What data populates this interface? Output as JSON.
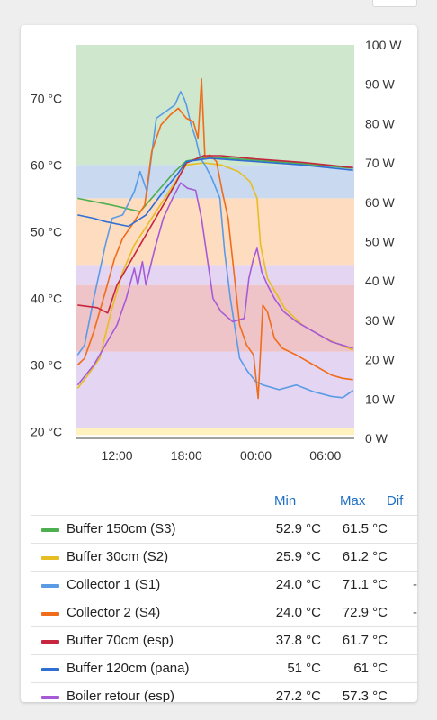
{
  "chart_data": {
    "type": "line",
    "y_left": {
      "unit": "°C",
      "range": [
        19,
        78
      ],
      "ticks": [
        "20 °C",
        "30 °C",
        "40 °C",
        "50 °C",
        "60 °C",
        "70 °C"
      ],
      "tick_values": [
        20,
        30,
        40,
        50,
        60,
        70
      ]
    },
    "y_right": {
      "unit": "W",
      "range": [
        0,
        100
      ],
      "ticks": [
        "0 W",
        "10 W",
        "20 W",
        "30 W",
        "40 W",
        "50 W",
        "60 W",
        "70 W",
        "80 W",
        "90 W",
        "100 W"
      ],
      "tick_values": [
        0,
        10,
        20,
        30,
        40,
        50,
        60,
        70,
        80,
        90,
        100
      ]
    },
    "x": {
      "range_hours": [
        8.5,
        32.5
      ],
      "ticks": [
        "12:00",
        "18:00",
        "00:00",
        "06:00"
      ],
      "tick_values": [
        12,
        18,
        24,
        30
      ]
    },
    "bands": [
      {
        "from_c": 19.5,
        "to_c": 20.5,
        "color": "#fff2bf"
      },
      {
        "from_c": 20.5,
        "to_c": 32,
        "color": "#e4d6f2"
      },
      {
        "from_c": 32,
        "to_c": 42,
        "color": "#eec4c8"
      },
      {
        "from_c": 42,
        "to_c": 45,
        "color": "#e4d6f2"
      },
      {
        "from_c": 45,
        "to_c": 55,
        "color": "#fedcc0"
      },
      {
        "from_c": 55,
        "to_c": 60,
        "color": "#c8d9f0"
      },
      {
        "from_c": 60,
        "to_c": 78,
        "color": "#cfe7cc"
      }
    ],
    "series": [
      {
        "name": "Buffer 150cm (S3)",
        "color": "#4caf50",
        "points": [
          [
            8.6,
            55
          ],
          [
            11.5,
            54
          ],
          [
            14,
            53
          ],
          [
            15.5,
            56
          ],
          [
            17,
            59
          ],
          [
            18,
            60.6
          ],
          [
            20,
            61.2
          ],
          [
            24,
            60.7
          ],
          [
            28,
            60.2
          ],
          [
            32.4,
            59.5
          ]
        ]
      },
      {
        "name": "Buffer 30cm (S2)",
        "color": "#e6bd22",
        "points": [
          [
            8.6,
            26.5
          ],
          [
            9.5,
            28.5
          ],
          [
            10.5,
            31
          ],
          [
            11.5,
            38
          ],
          [
            12.5,
            44
          ],
          [
            13.5,
            48
          ],
          [
            15,
            52
          ],
          [
            16.5,
            56
          ],
          [
            18,
            60
          ],
          [
            19.5,
            60.3
          ],
          [
            21,
            60
          ],
          [
            22.5,
            59
          ],
          [
            23.5,
            57.5
          ],
          [
            24.1,
            55
          ],
          [
            24.4,
            48
          ],
          [
            25,
            43
          ],
          [
            26.5,
            38.5
          ],
          [
            28,
            36
          ],
          [
            30,
            34
          ],
          [
            32.4,
            32.2
          ]
        ]
      },
      {
        "name": "Collector 1 (S1)",
        "color": "#5b9be6",
        "points": [
          [
            8.6,
            31.5
          ],
          [
            9.2,
            33
          ],
          [
            10,
            40
          ],
          [
            11,
            48
          ],
          [
            11.6,
            52
          ],
          [
            12.5,
            52.5
          ],
          [
            13.5,
            56
          ],
          [
            14,
            59
          ],
          [
            14.6,
            56
          ],
          [
            15.4,
            67
          ],
          [
            16.2,
            68
          ],
          [
            17,
            69
          ],
          [
            17.5,
            71
          ],
          [
            17.8,
            70
          ],
          [
            18,
            69
          ],
          [
            18.4,
            66
          ],
          [
            18.8,
            64
          ],
          [
            19.2,
            61
          ],
          [
            19.6,
            60
          ],
          [
            20.2,
            58
          ],
          [
            20.9,
            55
          ],
          [
            21.3,
            47
          ],
          [
            21.8,
            40
          ],
          [
            22.6,
            31
          ],
          [
            23.3,
            29
          ],
          [
            24,
            27.5
          ],
          [
            24.6,
            27
          ],
          [
            26,
            26.3
          ],
          [
            27.5,
            27
          ],
          [
            29,
            26
          ],
          [
            30.5,
            25.3
          ],
          [
            31.5,
            25.1
          ],
          [
            32.4,
            26.2
          ]
        ]
      },
      {
        "name": "Collector 2 (S4)",
        "color": "#ef6c1a",
        "points": [
          [
            8.6,
            30
          ],
          [
            9.2,
            31
          ],
          [
            10,
            35
          ],
          [
            11,
            41
          ],
          [
            11.8,
            46
          ],
          [
            12.5,
            49
          ],
          [
            13.3,
            51
          ],
          [
            14.4,
            54
          ],
          [
            15,
            62
          ],
          [
            15.8,
            66
          ],
          [
            16.6,
            67.5
          ],
          [
            17.3,
            68.5
          ],
          [
            18,
            67
          ],
          [
            18.6,
            66.5
          ],
          [
            19,
            64
          ],
          [
            19.3,
            72.9
          ],
          [
            19.6,
            61
          ],
          [
            20,
            61.5
          ],
          [
            20.6,
            60.5
          ],
          [
            21.1,
            56
          ],
          [
            21.6,
            52
          ],
          [
            22.1,
            44
          ],
          [
            22.6,
            36
          ],
          [
            23.2,
            33
          ],
          [
            23.8,
            31.5
          ],
          [
            24.2,
            25
          ],
          [
            24.6,
            39
          ],
          [
            25,
            38
          ],
          [
            25.6,
            34
          ],
          [
            26.3,
            32.5
          ],
          [
            27.5,
            31.5
          ],
          [
            29,
            30
          ],
          [
            30.5,
            28.5
          ],
          [
            31.5,
            28
          ],
          [
            32.4,
            27.8
          ]
        ]
      },
      {
        "name": "Buffer 70cm (esp)",
        "color": "#c6263e",
        "points": [
          [
            8.6,
            39
          ],
          [
            10.3,
            38.6
          ],
          [
            11.2,
            37.8
          ],
          [
            12,
            42
          ],
          [
            13,
            45
          ],
          [
            14,
            48
          ],
          [
            15,
            51
          ],
          [
            16,
            54
          ],
          [
            17,
            57
          ],
          [
            18,
            60.3
          ],
          [
            19.5,
            61.4
          ],
          [
            21,
            61.4
          ],
          [
            24,
            60.9
          ],
          [
            28,
            60.4
          ],
          [
            32.4,
            59.6
          ]
        ]
      },
      {
        "name": "Buffer 120cm (pana)",
        "color": "#2f6fd4",
        "points": [
          [
            8.6,
            52.5
          ],
          [
            10,
            52
          ],
          [
            11,
            51.5
          ],
          [
            13,
            50.8
          ],
          [
            14.5,
            52.5
          ],
          [
            16,
            56
          ],
          [
            17.3,
            58.8
          ],
          [
            18,
            60.5
          ],
          [
            20,
            61
          ],
          [
            24,
            60.5
          ],
          [
            28,
            60
          ],
          [
            32.4,
            59.2
          ]
        ]
      },
      {
        "name": "Boiler retour (esp)",
        "color": "#a65ad6",
        "points": [
          [
            8.6,
            27
          ],
          [
            9.3,
            28.5
          ],
          [
            10,
            30
          ],
          [
            11,
            33
          ],
          [
            12,
            36
          ],
          [
            12.8,
            40
          ],
          [
            13.5,
            44.5
          ],
          [
            13.8,
            42
          ],
          [
            14.2,
            45.5
          ],
          [
            14.5,
            42
          ],
          [
            15.2,
            47
          ],
          [
            16,
            52
          ],
          [
            16.8,
            55
          ],
          [
            17.5,
            57.3
          ],
          [
            18.1,
            56.5
          ],
          [
            18.8,
            56.2
          ],
          [
            19.3,
            52
          ],
          [
            19.8,
            46
          ],
          [
            20.3,
            40
          ],
          [
            21,
            38
          ],
          [
            22,
            36.5
          ],
          [
            23,
            37
          ],
          [
            23.4,
            43
          ],
          [
            23.8,
            46
          ],
          [
            24.1,
            47.5
          ],
          [
            24.5,
            44
          ],
          [
            25,
            42
          ],
          [
            25.6,
            40
          ],
          [
            26.4,
            38
          ],
          [
            27.5,
            36.5
          ],
          [
            29,
            35
          ],
          [
            30.5,
            33.5
          ],
          [
            32.4,
            32.5
          ]
        ]
      }
    ]
  },
  "legend": {
    "headers": {
      "min": "Min",
      "max": "Max",
      "dif": "Dif"
    },
    "rows": [
      {
        "name": "Buffer 150cm (S3)",
        "color": "#4caf50",
        "min": "52.9 °C",
        "max": "61.5 °C",
        "dif": ""
      },
      {
        "name": "Buffer 30cm (S2)",
        "color": "#e6bd22",
        "min": "25.9 °C",
        "max": "61.2 °C",
        "dif": ""
      },
      {
        "name": "Collector 1 (S1)",
        "color": "#5b9be6",
        "min": "24.0 °C",
        "max": "71.1 °C",
        "dif": "-"
      },
      {
        "name": "Collector 2 (S4)",
        "color": "#ef6c1a",
        "min": "24.0 °C",
        "max": "72.9 °C",
        "dif": "-"
      },
      {
        "name": "Buffer 70cm (esp)",
        "color": "#c6263e",
        "min": "37.8 °C",
        "max": "61.7 °C",
        "dif": ""
      },
      {
        "name": "Buffer 120cm (pana)",
        "color": "#2f6fd4",
        "min": "51 °C",
        "max": "61 °C",
        "dif": ""
      },
      {
        "name": "Boiler retour (esp)",
        "color": "#a65ad6",
        "min": "27.2 °C",
        "max": "57.3 °C",
        "dif": ""
      }
    ]
  }
}
